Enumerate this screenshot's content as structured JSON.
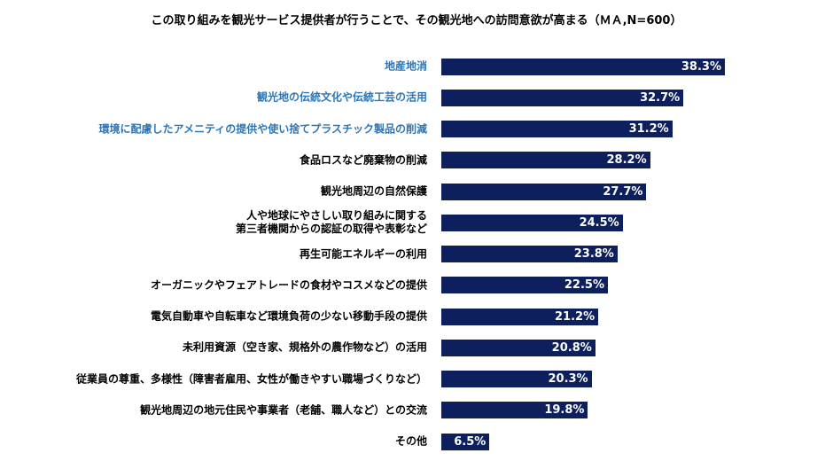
{
  "chart_data": {
    "type": "barh",
    "title": "この取り組みを観光サービス提供者が行うことで、その観光地への訪問意欲が高まる（ＭＡ,N=600）",
    "categories": [
      "地産地消",
      "観光地の伝統文化や伝統工芸の活用",
      "環境に配慮したアメニティの提供や使い捨てプラスチック製品の削減",
      "食品ロスなど廃棄物の削減",
      "観光地周辺の自然保護",
      "人や地球にやさしい取り組みに関する\n第三者機関からの認証の取得や表彰など",
      "再生可能エネルギーの利用",
      "オーガニックやフェアトレードの食材やコスメなどの提供",
      "電気自動車や自転車など環境負荷の少ない移動手段の提供",
      "未利用資源（空き家、規格外の農作物など）の活用",
      "従業員の尊重、多様性（障害者雇用、女性が働きやすい職場づくりなど）",
      "観光地周辺の地元住民や事業者（老舗、職人など）との交流",
      "その他"
    ],
    "category_colors": [
      "#2e75b6",
      "#2e75b6",
      "#2e75b6",
      "#000000",
      "#000000",
      "#000000",
      "#000000",
      "#000000",
      "#000000",
      "#000000",
      "#000000",
      "#000000",
      "#000000"
    ],
    "values": [
      38.3,
      32.7,
      31.2,
      28.2,
      27.7,
      24.5,
      23.8,
      22.5,
      21.2,
      20.8,
      20.3,
      19.8,
      6.5
    ],
    "value_labels": [
      "38.3%",
      "32.7%",
      "31.2%",
      "28.2%",
      "27.7%",
      "24.5%",
      "23.8%",
      "22.5%",
      "21.2%",
      "20.8%",
      "20.3%",
      "19.8%",
      "6.5%"
    ],
    "color": "#0d1f5c"
  }
}
